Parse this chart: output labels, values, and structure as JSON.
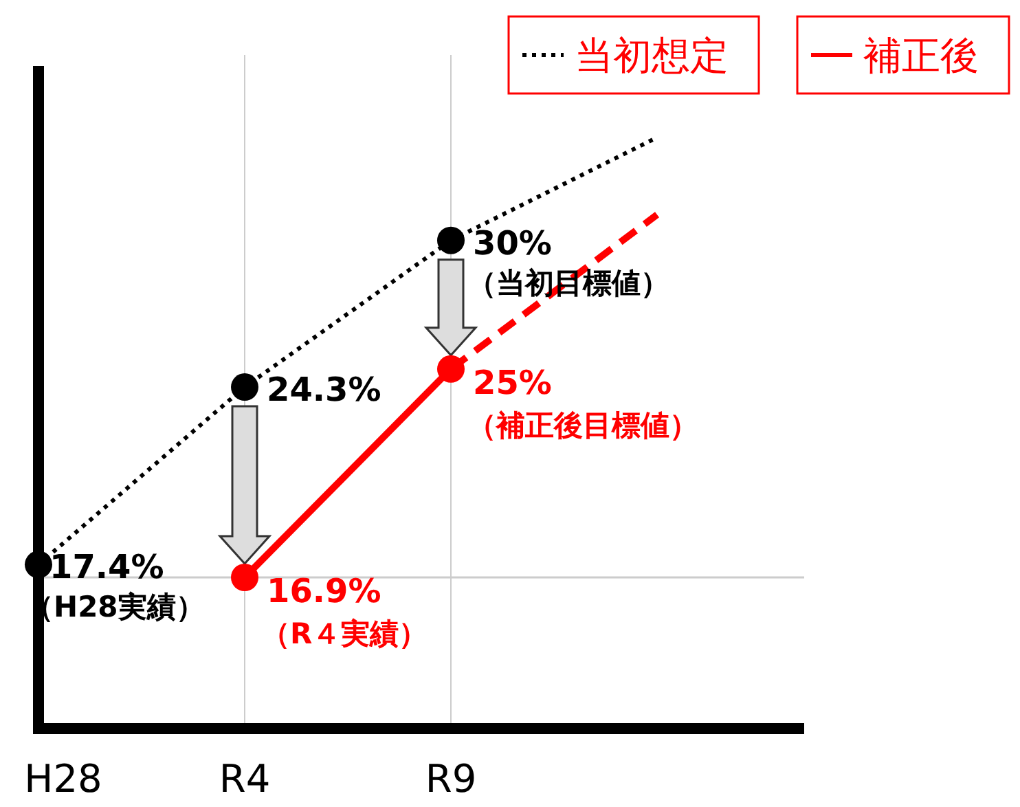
{
  "chart_data": {
    "type": "line",
    "categories": [
      "H28",
      "R4",
      "R9",
      null
    ],
    "series": [
      {
        "name": "当初想定",
        "color": "#000000",
        "values": [
          17.4,
          24.3,
          30,
          null
        ],
        "line_style": "dotted",
        "marker": "circle",
        "value_labels": [
          "17.4%",
          "24.3%",
          "30%",
          null
        ]
      },
      {
        "name": "補正後",
        "color": "#ff0000",
        "values": [
          null,
          16.9,
          25,
          null
        ],
        "line_style": "solid",
        "marker": "circle",
        "value_labels": [
          null,
          "16.9%",
          "25%",
          null
        ]
      },
      {
        "color": "#000000",
        "values": [
          null,
          null,
          30,
          34
        ],
        "line_style": "dotted",
        "marker": "none"
      },
      {
        "color": "#ff0000",
        "values": [
          null,
          null,
          25,
          31
        ],
        "line_style": "dashed",
        "marker": "none"
      }
    ],
    "tick_labels": "x",
    "grid": "x",
    "legend": "top right",
    "ref_lines": [
      {
        "axis": "y",
        "value": 16.9,
        "color": "#cccccc"
      }
    ],
    "annotations": [
      {
        "text": "（H28実績）",
        "x": "H28",
        "y": 17.4
      },
      {
        "text": "（R４実績）",
        "x": "R4",
        "y": 16.9
      },
      {
        "text": "（当初目標値）",
        "x": "R9",
        "y": 30
      },
      {
        "text": "（補正後目標値）",
        "x": "R9",
        "y": 25
      }
    ]
  }
}
